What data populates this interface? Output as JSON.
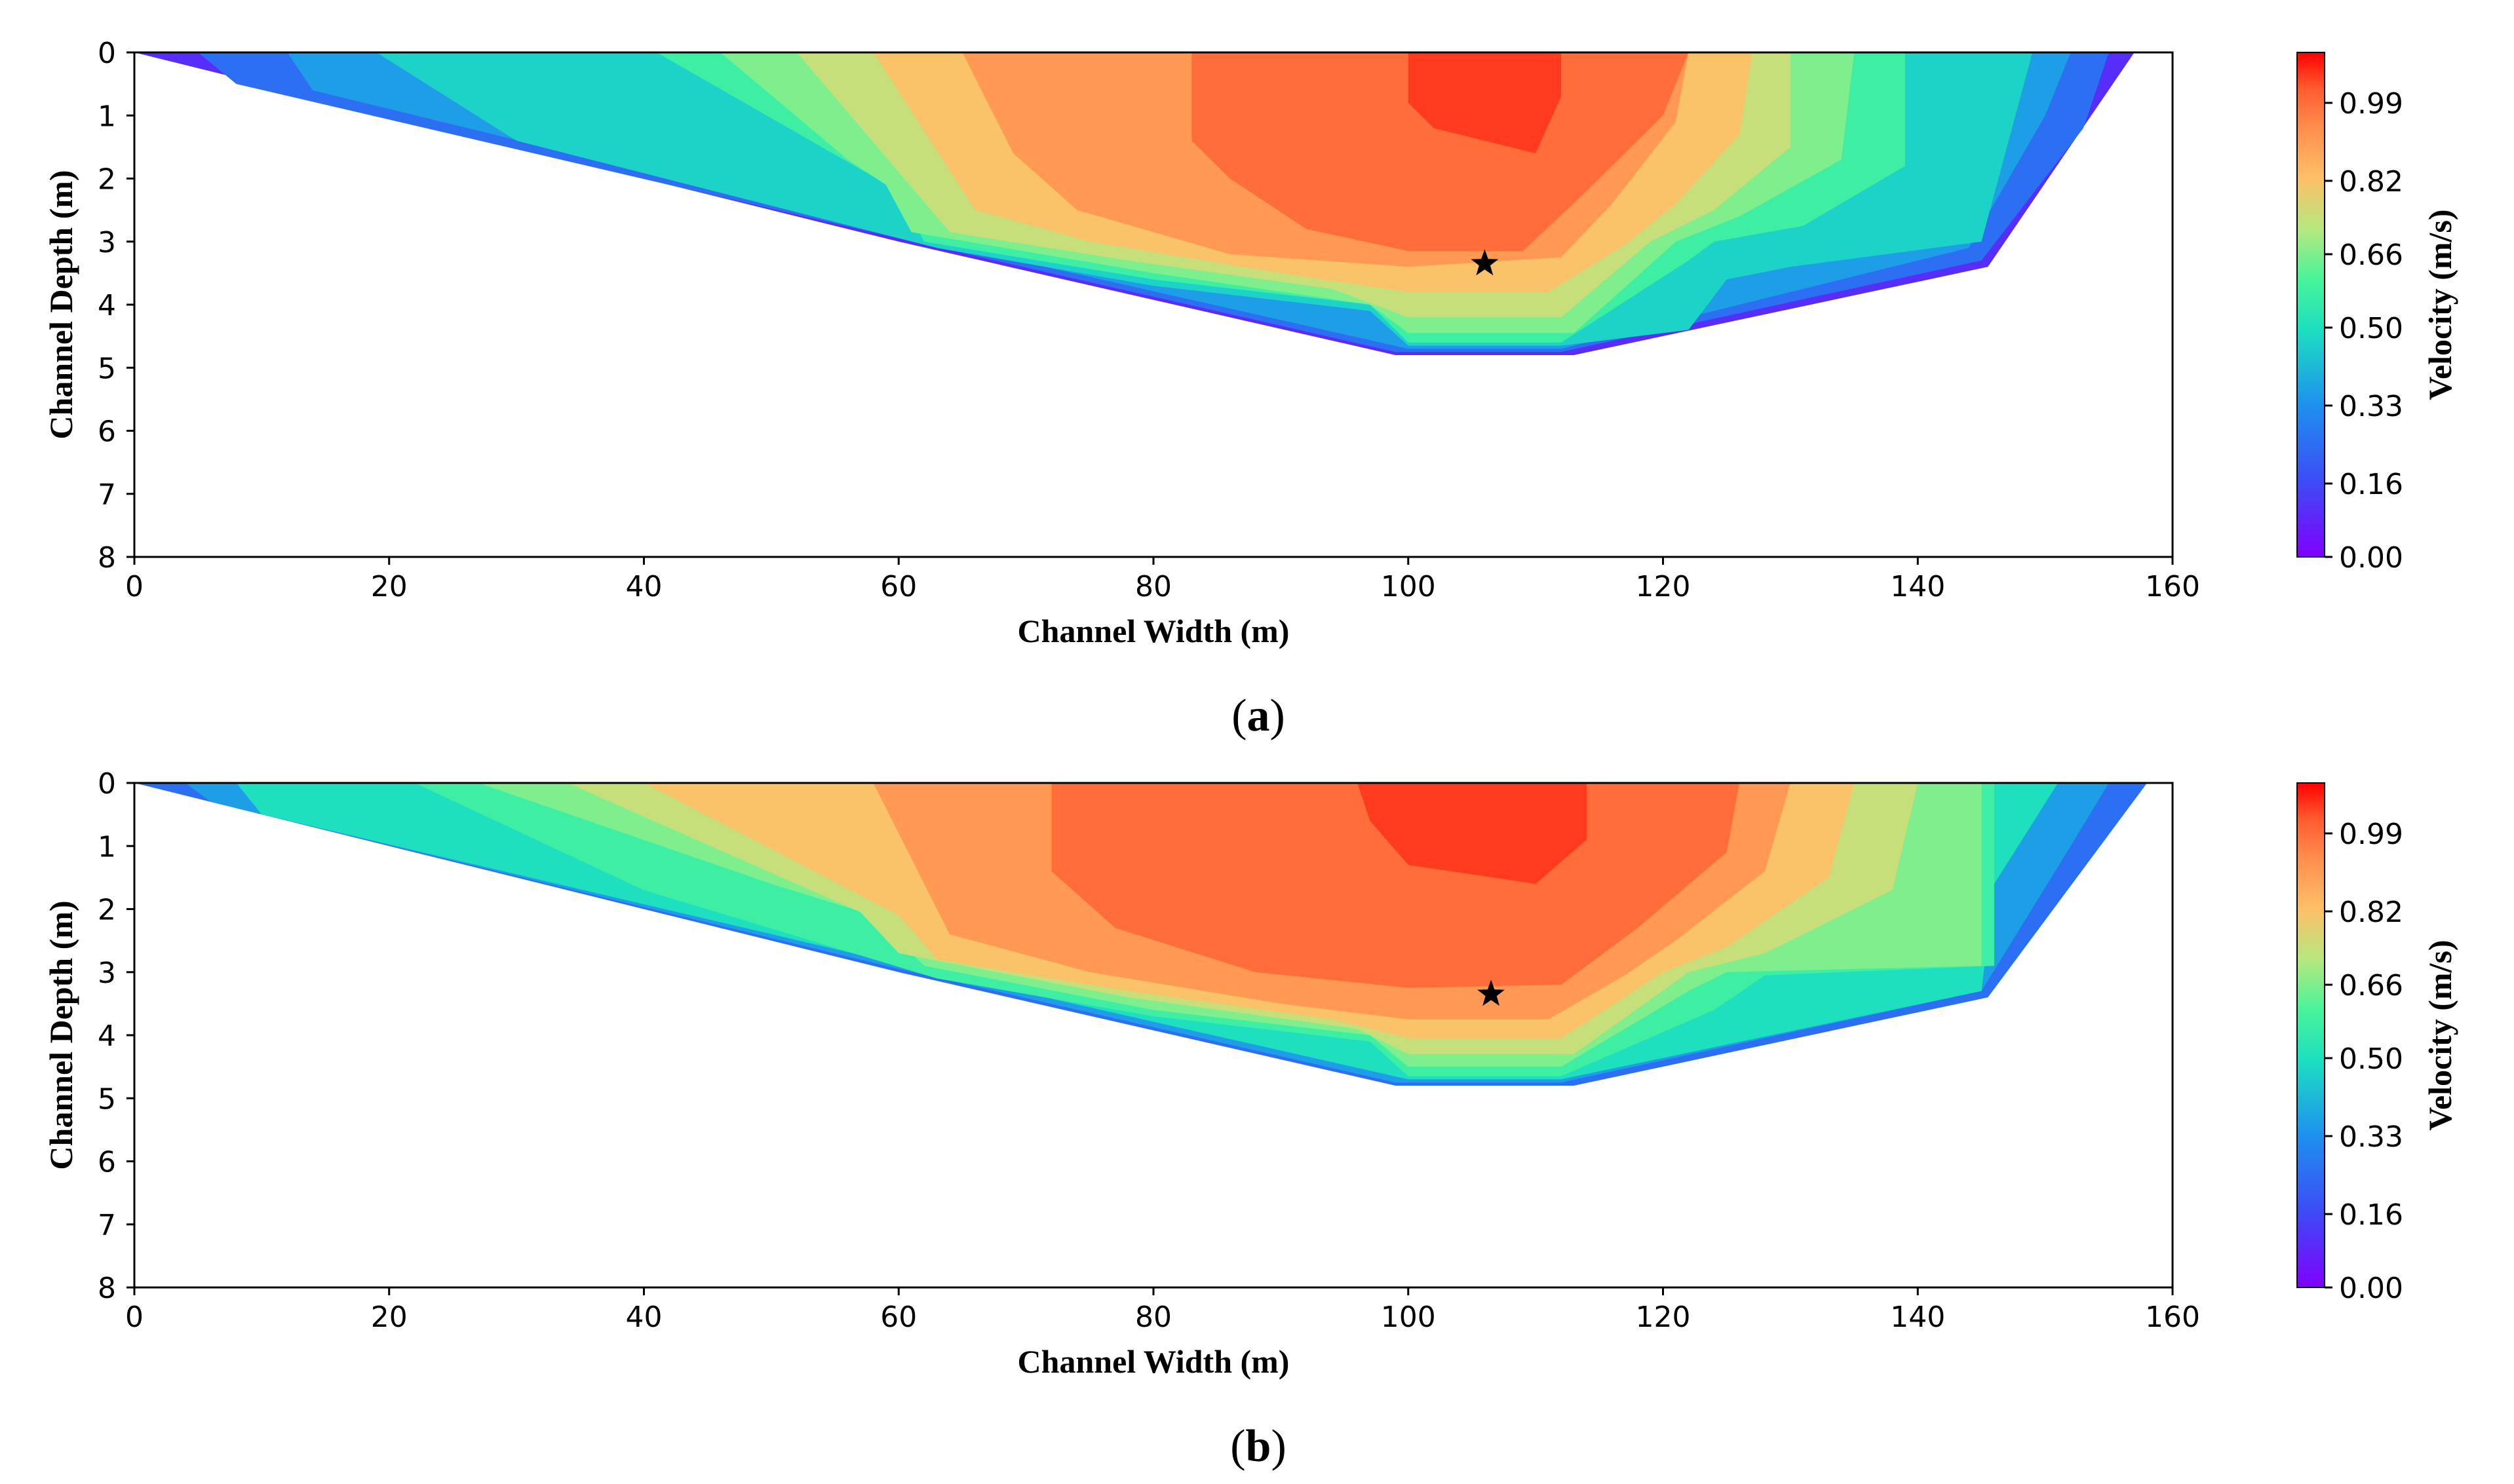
{
  "chart_data": [
    {
      "type": "heatmap",
      "subtype": "filled-contour",
      "panel_label": "a",
      "xlabel": "Channel Width (m)",
      "ylabel": "Channel Depth (m)",
      "colorbar_label": "Velocity (m/s)",
      "xlim": [
        0,
        160
      ],
      "ylim": [
        8,
        0
      ],
      "xticks": [
        0,
        20,
        40,
        60,
        80,
        100,
        120,
        140,
        160
      ],
      "yticks": [
        0,
        1,
        2,
        3,
        4,
        5,
        6,
        7,
        8
      ],
      "colorbar_ticks": [
        "0.00",
        "0.16",
        "0.33",
        "0.50",
        "0.66",
        "0.82",
        "0.99"
      ],
      "colorbar_range": [
        0,
        1.1
      ],
      "bed_profile": [
        [
          0,
          0
        ],
        [
          60,
          3.0
        ],
        [
          99,
          4.8
        ],
        [
          113,
          4.8
        ],
        [
          145.5,
          3.4
        ],
        [
          157,
          0
        ]
      ],
      "contour_regions": [
        {
          "level": 0.1,
          "poly": [
            [
              0,
              0
            ],
            [
              157,
              0
            ],
            [
              145.5,
              3.4
            ],
            [
              113,
              4.8
            ],
            [
              99,
              4.8
            ],
            [
              60,
              3.0
            ]
          ]
        },
        {
          "level": 0.25,
          "poly": [
            [
              5,
              0
            ],
            [
              155,
              0
            ],
            [
              153,
              1.2
            ],
            [
              145,
              3.3
            ],
            [
              112,
              4.75
            ],
            [
              99,
              4.75
            ],
            [
              60,
              2.95
            ],
            [
              8,
              0.5
            ]
          ]
        },
        {
          "level": 0.36,
          "poly": [
            [
              12,
              0
            ],
            [
              152,
              0
            ],
            [
              150,
              1.0
            ],
            [
              144,
              3.1
            ],
            [
              112,
              4.7
            ],
            [
              100,
              4.7
            ],
            [
              61,
              2.92
            ],
            [
              14,
              0.6
            ]
          ]
        },
        {
          "level": 0.47,
          "poly": [
            [
              19,
              0
            ],
            [
              149,
              0
            ],
            [
              145,
              3.0
            ],
            [
              130,
              3.4
            ],
            [
              125,
              3.6
            ],
            [
              122,
              4.4
            ],
            [
              112,
              4.65
            ],
            [
              100,
              4.65
            ],
            [
              97,
              4.1
            ],
            [
              80,
              3.7
            ],
            [
              63,
              3.1
            ],
            [
              30,
              1.4
            ]
          ]
        },
        {
          "level": 0.58,
          "poly": [
            [
              41,
              0
            ],
            [
              139,
              0
            ],
            [
              139,
              1.8
            ],
            [
              131,
              2.75
            ],
            [
              124,
              3.0
            ],
            [
              122,
              3.3
            ],
            [
              112,
              4.6
            ],
            [
              100,
              4.6
            ],
            [
              97,
              4.0
            ],
            [
              80,
              3.6
            ],
            [
              62,
              3.0
            ],
            [
              60,
              2.2
            ]
          ]
        },
        {
          "level": 0.66,
          "poly": [
            [
              46,
              0
            ],
            [
              135,
              0
            ],
            [
              134,
              1.7
            ],
            [
              126,
              2.6
            ],
            [
              121,
              3.0
            ],
            [
              113,
              4.45
            ],
            [
              100,
              4.45
            ],
            [
              97,
              4.0
            ],
            [
              80,
              3.5
            ],
            [
              61,
              2.85
            ],
            [
              59,
              2.1
            ],
            [
              56,
              1.7
            ]
          ]
        },
        {
          "level": 0.74,
          "poly": [
            [
              52,
              0
            ],
            [
              130,
              0
            ],
            [
              130,
              1.5
            ],
            [
              124,
              2.5
            ],
            [
              119,
              3.0
            ],
            [
              112,
              4.2
            ],
            [
              100,
              4.2
            ],
            [
              94,
              3.75
            ],
            [
              78,
              3.3
            ],
            [
              64,
              2.85
            ]
          ]
        },
        {
          "level": 0.82,
          "poly": [
            [
              58,
              0
            ],
            [
              127,
              0
            ],
            [
              126,
              1.3
            ],
            [
              121,
              2.4
            ],
            [
              117,
              3.05
            ],
            [
              111,
              3.8
            ],
            [
              100,
              3.8
            ],
            [
              90,
              3.5
            ],
            [
              75,
              3.0
            ],
            [
              66,
              2.5
            ]
          ]
        },
        {
          "level": 0.91,
          "poly": [
            [
              65,
              0
            ],
            [
              122,
              0
            ],
            [
              121,
              1.1
            ],
            [
              116,
              2.4
            ],
            [
              112,
              3.25
            ],
            [
              100,
              3.4
            ],
            [
              86,
              3.2
            ],
            [
              74,
              2.5
            ],
            [
              69,
              1.6
            ]
          ]
        },
        {
          "level": 0.99,
          "poly": [
            [
              83,
              0
            ],
            [
              122,
              0
            ],
            [
              120,
              1.0
            ],
            [
              114,
              2.2
            ],
            [
              109,
              3.15
            ],
            [
              100,
              3.15
            ],
            [
              92,
              2.8
            ],
            [
              86,
              2.0
            ],
            [
              83,
              1.4
            ]
          ]
        },
        {
          "level": 1.05,
          "poly": [
            [
              100,
              0
            ],
            [
              112,
              0
            ],
            [
              112,
              0.7
            ],
            [
              110,
              1.6
            ],
            [
              102,
              1.2
            ],
            [
              100,
              0.8
            ]
          ]
        }
      ],
      "marker": {
        "symbol": "star",
        "x": 106,
        "y": 3.35
      }
    },
    {
      "type": "heatmap",
      "subtype": "filled-contour",
      "panel_label": "b",
      "xlabel": "Channel Width (m)",
      "ylabel": "Channel Depth (m)",
      "colorbar_label": "Velocity (m/s)",
      "xlim": [
        0,
        160
      ],
      "ylim": [
        8,
        0
      ],
      "xticks": [
        0,
        20,
        40,
        60,
        80,
        100,
        120,
        140,
        160
      ],
      "yticks": [
        0,
        1,
        2,
        3,
        4,
        5,
        6,
        7,
        8
      ],
      "colorbar_ticks": [
        "0.00",
        "0.16",
        "0.33",
        "0.50",
        "0.66",
        "0.82",
        "0.99"
      ],
      "colorbar_range": [
        0,
        1.1
      ],
      "bed_profile": [
        [
          0,
          0
        ],
        [
          60,
          3.0
        ],
        [
          99,
          4.8
        ],
        [
          113,
          4.8
        ],
        [
          145.5,
          3.4
        ],
        [
          158,
          0
        ]
      ],
      "contour_regions": [
        {
          "level": 0.25,
          "poly": [
            [
              0,
              0
            ],
            [
              158,
              0
            ],
            [
              145.5,
              3.4
            ],
            [
              113,
              4.8
            ],
            [
              99,
              4.8
            ],
            [
              60,
              3.0
            ]
          ]
        },
        {
          "level": 0.36,
          "poly": [
            [
              4,
              0
            ],
            [
              155,
              0
            ],
            [
              152,
              1.0
            ],
            [
              145,
              3.3
            ],
            [
              112,
              4.75
            ],
            [
              99,
              4.75
            ],
            [
              60,
              2.95
            ],
            [
              6,
              0.3
            ]
          ]
        },
        {
          "level": 0.5,
          "poly": [
            [
              8,
              0
            ],
            [
              151,
              0
            ],
            [
              146,
              1.6
            ],
            [
              145,
              3.3
            ],
            [
              112,
              4.7
            ],
            [
              100,
              4.7
            ],
            [
              61,
              2.92
            ],
            [
              10,
              0.5
            ]
          ]
        },
        {
          "level": 0.58,
          "poly": [
            [
              22,
              0
            ],
            [
              146,
              0
            ],
            [
              146,
              2.9
            ],
            [
              128,
              3.05
            ],
            [
              124,
              3.6
            ],
            [
              112,
              4.65
            ],
            [
              100,
              4.65
            ],
            [
              97,
              4.1
            ],
            [
              80,
              3.7
            ],
            [
              63,
              3.1
            ],
            [
              40,
              1.7
            ]
          ]
        },
        {
          "level": 0.66,
          "poly": [
            [
              27,
              0
            ],
            [
              145,
              0
            ],
            [
              145,
              2.9
            ],
            [
              125,
              3.0
            ],
            [
              122,
              3.3
            ],
            [
              112,
              4.5
            ],
            [
              100,
              4.5
            ],
            [
              97,
              4.0
            ],
            [
              80,
              3.6
            ],
            [
              62,
              2.9
            ],
            [
              58,
              2.1
            ],
            [
              50,
              1.6
            ]
          ]
        },
        {
          "level": 0.74,
          "poly": [
            [
              34,
              0
            ],
            [
              140,
              0
            ],
            [
              138,
              1.7
            ],
            [
              128,
              2.7
            ],
            [
              122,
              3.0
            ],
            [
              113,
              4.3
            ],
            [
              100,
              4.3
            ],
            [
              96,
              3.9
            ],
            [
              78,
              3.4
            ],
            [
              60,
              2.7
            ],
            [
              57,
              2.05
            ]
          ]
        },
        {
          "level": 0.82,
          "poly": [
            [
              40,
              0
            ],
            [
              135,
              0
            ],
            [
              133,
              1.5
            ],
            [
              125,
              2.6
            ],
            [
              120,
              3.0
            ],
            [
              112,
              4.05
            ],
            [
              100,
              4.05
            ],
            [
              94,
              3.75
            ],
            [
              78,
              3.3
            ],
            [
              63,
              2.8
            ],
            [
              60,
              2.1
            ]
          ]
        },
        {
          "level": 0.91,
          "poly": [
            [
              58,
              0
            ],
            [
              130,
              0
            ],
            [
              128,
              1.4
            ],
            [
              121,
              2.5
            ],
            [
              117,
              3.05
            ],
            [
              111,
              3.75
            ],
            [
              100,
              3.75
            ],
            [
              90,
              3.5
            ],
            [
              75,
              3.0
            ],
            [
              64,
              2.4
            ]
          ]
        },
        {
          "level": 0.99,
          "poly": [
            [
              72,
              0
            ],
            [
              126,
              0
            ],
            [
              125,
              1.1
            ],
            [
              118,
              2.3
            ],
            [
              112,
              3.2
            ],
            [
              100,
              3.25
            ],
            [
              88,
              3.0
            ],
            [
              77,
              2.3
            ],
            [
              72,
              1.4
            ]
          ]
        },
        {
          "level": 1.05,
          "poly": [
            [
              96,
              0
            ],
            [
              114,
              0
            ],
            [
              114,
              0.9
            ],
            [
              110,
              1.6
            ],
            [
              100,
              1.3
            ],
            [
              97,
              0.6
            ]
          ]
        }
      ],
      "marker": {
        "symbol": "star",
        "x": 106.5,
        "y": 3.35
      }
    }
  ]
}
